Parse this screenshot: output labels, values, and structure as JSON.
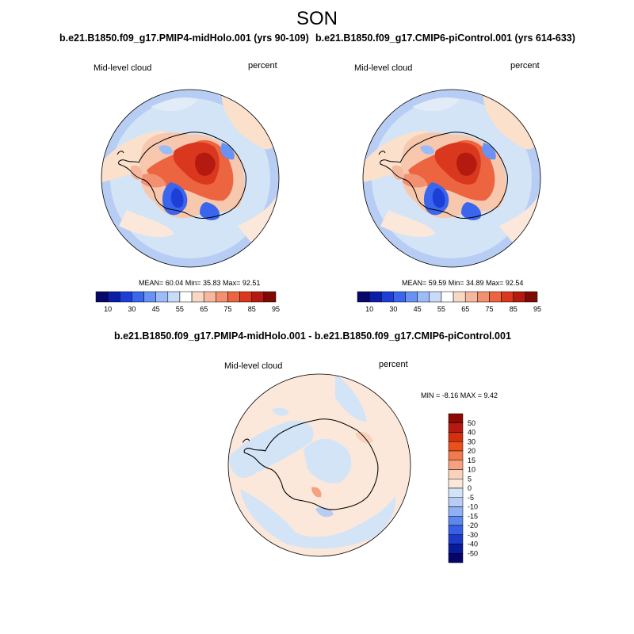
{
  "title": "SON",
  "panels": [
    {
      "title": "b.e21.B1850.f09_g17.PMIP4-midHolo.001 (yrs 90-109)",
      "left_label": "Mid-level cloud",
      "right_label": "percent",
      "stats": "MEAN=  60.04  Min=  35.83  Max=  92.51",
      "colorbar_ticks": [
        "10",
        "30",
        "45",
        "55",
        "65",
        "75",
        "85",
        "95"
      ]
    },
    {
      "title": "b.e21.B1850.f09_g17.CMIP6-piControl.001 (yrs 614-633)",
      "left_label": "Mid-level cloud",
      "right_label": "percent",
      "stats": "MEAN=  59.59  Min=  34.89  Max=  92.54",
      "colorbar_ticks": [
        "10",
        "30",
        "45",
        "55",
        "65",
        "75",
        "85",
        "95"
      ]
    }
  ],
  "diff_panel": {
    "title": "b.e21.B1850.f09_g17.PMIP4-midHolo.001 - b.e21.B1850.f09_g17.CMIP6-piControl.001",
    "left_label": "Mid-level cloud",
    "right_label": "percent",
    "stats": "MIN =  -8.16 MAX =   9.42",
    "colorbar_ticks": [
      "50",
      "40",
      "30",
      "20",
      "15",
      "10",
      "5",
      "0",
      "-5",
      "-10",
      "-15",
      "-20",
      "-30",
      "-40",
      "-50"
    ]
  },
  "colors": {
    "seq_palette": [
      "#08086b",
      "#0a1fa6",
      "#1d3fd8",
      "#3a66ee",
      "#6a92f5",
      "#9cbcf8",
      "#c8dcf8",
      "#ffffff",
      "#f8d7c4",
      "#f5b89e",
      "#f29070",
      "#ec6440",
      "#d9381f",
      "#b51a10",
      "#7e0a06"
    ],
    "diff_palette": [
      "#8c0a04",
      "#b51a10",
      "#d2300f",
      "#e8501c",
      "#f07a4e",
      "#f5a07e",
      "#fad2bb",
      "#fbe8da",
      "#d3e4f7",
      "#b7cdf4",
      "#8fb0f2",
      "#5d86ee",
      "#3660e6",
      "#1c3ac8",
      "#0a1a9c",
      "#06066a"
    ],
    "ocean_light": "#d3e4f7",
    "land_light": "#fbe8da"
  }
}
